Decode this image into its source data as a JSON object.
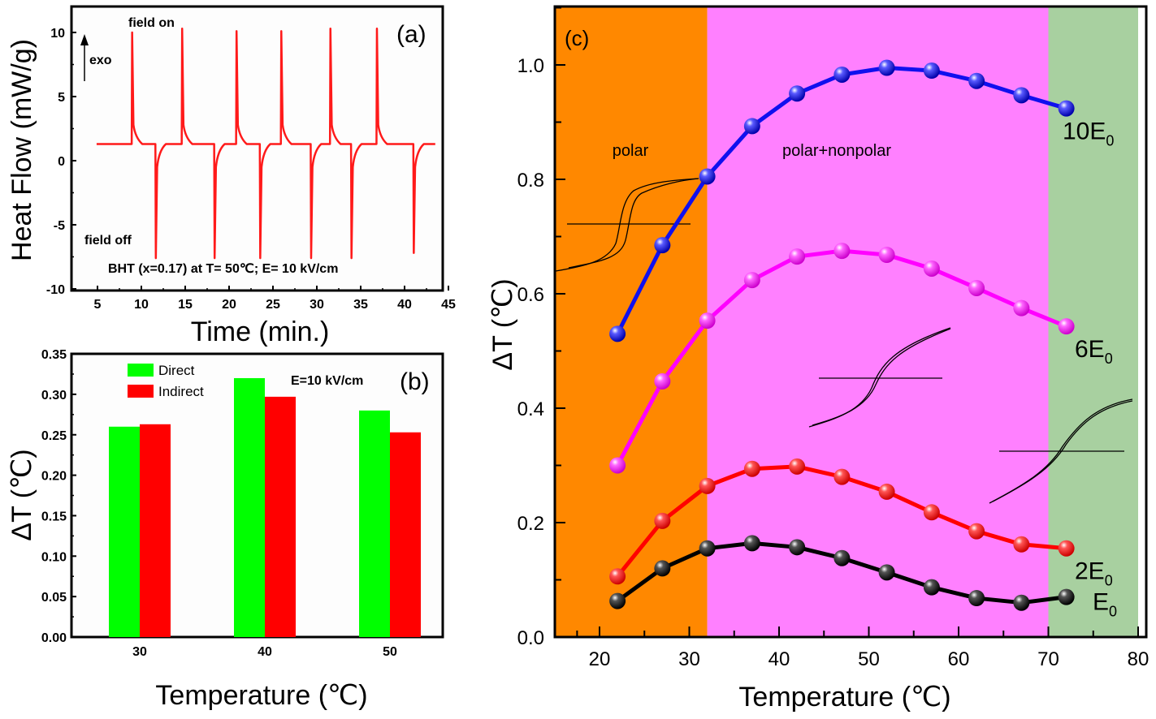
{
  "chart_data": [
    {
      "panel": "a",
      "type": "line",
      "panel_label": "(a)",
      "xlabel": "Time (min.)",
      "ylabel": "Heat Flow (mW/g)",
      "xlim": [
        3,
        45
      ],
      "ylim": [
        -10,
        12
      ],
      "xticks": [
        5,
        10,
        15,
        20,
        25,
        30,
        35,
        40,
        45
      ],
      "yticks": [
        -10,
        -5,
        0,
        5,
        10
      ],
      "baseline": 1.3,
      "annotations": {
        "field_on": "field on",
        "field_off": "field off",
        "exo": "exo",
        "condition": "BHT (x=0.17) at T= 50℃; E= 10 kV/cm"
      },
      "series": [
        {
          "name": "heat flow",
          "color": "#ff1a1a",
          "peaks_up": [
            [
              8.9,
              10.0
            ],
            [
              14.6,
              10.3
            ],
            [
              20.8,
              10.1
            ],
            [
              25.9,
              10.1
            ],
            [
              31.5,
              10.3
            ],
            [
              36.8,
              10.3
            ]
          ],
          "peaks_down": [
            [
              11.6,
              -7.6
            ],
            [
              18.3,
              -7.6
            ],
            [
              23.5,
              -7.6
            ],
            [
              29.3,
              -7.6
            ],
            [
              33.9,
              -7.6
            ],
            [
              41.0,
              -7.2
            ]
          ],
          "x_start": 4.9,
          "x_end": 43.5
        }
      ]
    },
    {
      "panel": "b",
      "type": "bar",
      "panel_label": "(b)",
      "annotation": "E=10 kV/cm",
      "xlabel": "Temperature (℃)",
      "ylabel": "ΔT (℃)",
      "categories": [
        "30",
        "40",
        "50"
      ],
      "ylim": [
        0,
        0.35
      ],
      "yticks": [
        "0.00",
        "0.05",
        "0.10",
        "0.15",
        "0.20",
        "0.25",
        "0.30",
        "0.35"
      ],
      "legend_position": "top-left",
      "series": [
        {
          "name": "Direct",
          "color": "#00ff00",
          "values": [
            0.26,
            0.32,
            0.28
          ]
        },
        {
          "name": "Indirect",
          "color": "#ff0000",
          "values": [
            0.263,
            0.297,
            0.253
          ]
        }
      ]
    },
    {
      "panel": "c",
      "type": "line",
      "panel_label": "(c)",
      "xlabel": "Temperature (℃)",
      "ylabel": "ΔT (℃)",
      "xlim": [
        15,
        80
      ],
      "ylim": [
        0,
        1.1
      ],
      "xticks": [
        "20",
        "30",
        "40",
        "50",
        "60",
        "70",
        "80"
      ],
      "yticks": [
        "0.0",
        "0.2",
        "0.4",
        "0.6",
        "0.8",
        "1.0"
      ],
      "regions": [
        {
          "name": "polar",
          "from": 15,
          "to": 32,
          "color": "#ff8800"
        },
        {
          "name": "polar+nonpolar",
          "from": 32,
          "to": 70,
          "color": "#ff80ff"
        },
        {
          "name": "",
          "from": 70,
          "to": 80,
          "color": "#a8d0a0"
        }
      ],
      "x": [
        22,
        27,
        32,
        37,
        42,
        47,
        52,
        57,
        62,
        67,
        72
      ],
      "series": [
        {
          "name": "10E",
          "sub": "0",
          "color": "#1010ee",
          "values": [
            0.53,
            0.685,
            0.805,
            0.893,
            0.95,
            0.983,
            0.995,
            0.99,
            0.972,
            0.947,
            0.924
          ]
        },
        {
          "name": "6E",
          "sub": "0",
          "color": "#ff00ff",
          "values": [
            0.3,
            0.447,
            0.553,
            0.624,
            0.665,
            0.675,
            0.668,
            0.644,
            0.61,
            0.575,
            0.543
          ]
        },
        {
          "name": "2E",
          "sub": "0",
          "color": "#ff0000",
          "values": [
            0.106,
            0.203,
            0.264,
            0.294,
            0.298,
            0.28,
            0.254,
            0.218,
            0.185,
            0.162,
            0.155
          ]
        },
        {
          "name": "E",
          "sub": "0",
          "color": "#000000",
          "values": [
            0.063,
            0.12,
            0.155,
            0.164,
            0.157,
            0.138,
            0.113,
            0.087,
            0.068,
            0.06,
            0.07
          ]
        }
      ]
    }
  ]
}
